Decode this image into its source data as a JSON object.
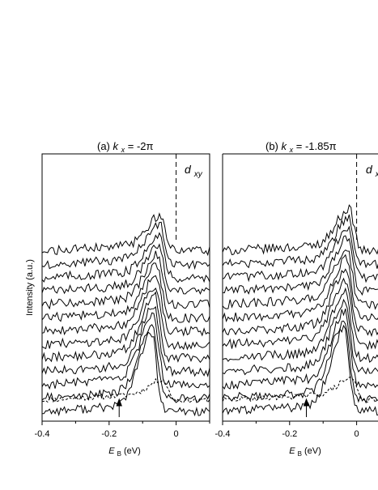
{
  "figure": {
    "ylabel": "Intensity (a.u.)"
  },
  "chart_data": [
    {
      "type": "line",
      "panel_label": "(a)",
      "title_var": "k",
      "title_sub": "x",
      "title_value": " = -2π",
      "orbital_main": "d",
      "orbital_sub": "xy",
      "xlabel_main": "E",
      "xlabel_sub": "B",
      "xlabel_unit": " (eV)",
      "ylabel": "Intensity (a.u.)",
      "xlim": [
        -0.4,
        0.1
      ],
      "xticks": [
        -0.4,
        -0.2,
        0
      ],
      "xtick_labels": [
        "-0.4",
        "-0.2",
        "0"
      ],
      "fermi_level": 0.0,
      "arrow_at": -0.17,
      "peak_position": [
        -0.047,
        -0.049,
        -0.051,
        -0.053,
        -0.055,
        -0.057,
        -0.059,
        -0.061,
        -0.063,
        -0.065,
        -0.067,
        -0.07,
        -0.073
      ],
      "peak_height": [
        1.9,
        2.2,
        2.4,
        2.6,
        2.8,
        3.0,
        3.2,
        3.4,
        3.6,
        3.8,
        4.0,
        4.3,
        4.6
      ],
      "reference_curve": {
        "style": "dashed",
        "peak_position": -0.04,
        "peak_height": 0.9
      },
      "n_curves": 13,
      "grid": false,
      "legend": "none"
    },
    {
      "type": "line",
      "panel_label": "(b)",
      "title_var": "k",
      "title_sub": "x",
      "title_value": " = -1.85π",
      "orbital_main": "d",
      "orbital_sub": "x",
      "xlabel_main": "E",
      "xlabel_sub": "B",
      "xlabel_unit": " (eV)",
      "xlim": [
        -0.4,
        0.1
      ],
      "xticks": [
        -0.4,
        -0.2,
        0
      ],
      "xtick_labels": [
        "-0.4",
        "-0.2",
        "0"
      ],
      "fermi_level": 0.0,
      "arrow_at": -0.15,
      "peak_position": [
        -0.022,
        -0.024,
        -0.026,
        -0.027,
        -0.028,
        -0.03,
        -0.031,
        -0.032,
        -0.033,
        -0.034,
        -0.035,
        -0.036,
        -0.037
      ],
      "peak_height": [
        2.3,
        2.6,
        2.8,
        3.0,
        3.2,
        3.4,
        3.6,
        3.8,
        4.0,
        4.2,
        4.4,
        4.6,
        4.9
      ],
      "reference_curve": {
        "style": "dashed",
        "peak_position": -0.015,
        "peak_height": 1.0
      },
      "n_curves": 13,
      "grid": false,
      "legend": "none"
    }
  ]
}
